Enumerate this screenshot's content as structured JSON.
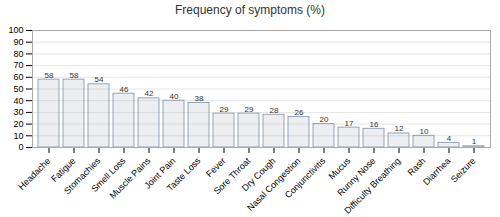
{
  "chart_data": {
    "type": "bar",
    "title": "Frequency of symptoms (%)",
    "categories": [
      "Headache",
      "Fatigue",
      "Stomachies",
      "Smell Loss",
      "Muscle Pains",
      "Joint Pain",
      "Taste Loss",
      "Fever",
      "Sore Throat",
      "Dry Cough",
      "Nasal Congestion",
      "Conjunctivitis",
      "Mucus",
      "Runny Nose",
      "Difficulty Breathing",
      "Rash",
      "Diarrhea",
      "Seizure"
    ],
    "values": [
      58,
      58,
      54,
      46,
      42,
      40,
      38,
      29,
      29,
      28,
      26,
      20,
      17,
      16,
      12,
      10,
      4,
      1
    ],
    "color": "#8090a8",
    "ylim": [
      0,
      100
    ],
    "yticks": [
      0,
      10,
      20,
      30,
      40,
      50,
      60,
      70,
      80,
      90,
      100
    ],
    "grid": true,
    "data_labels": true
  }
}
